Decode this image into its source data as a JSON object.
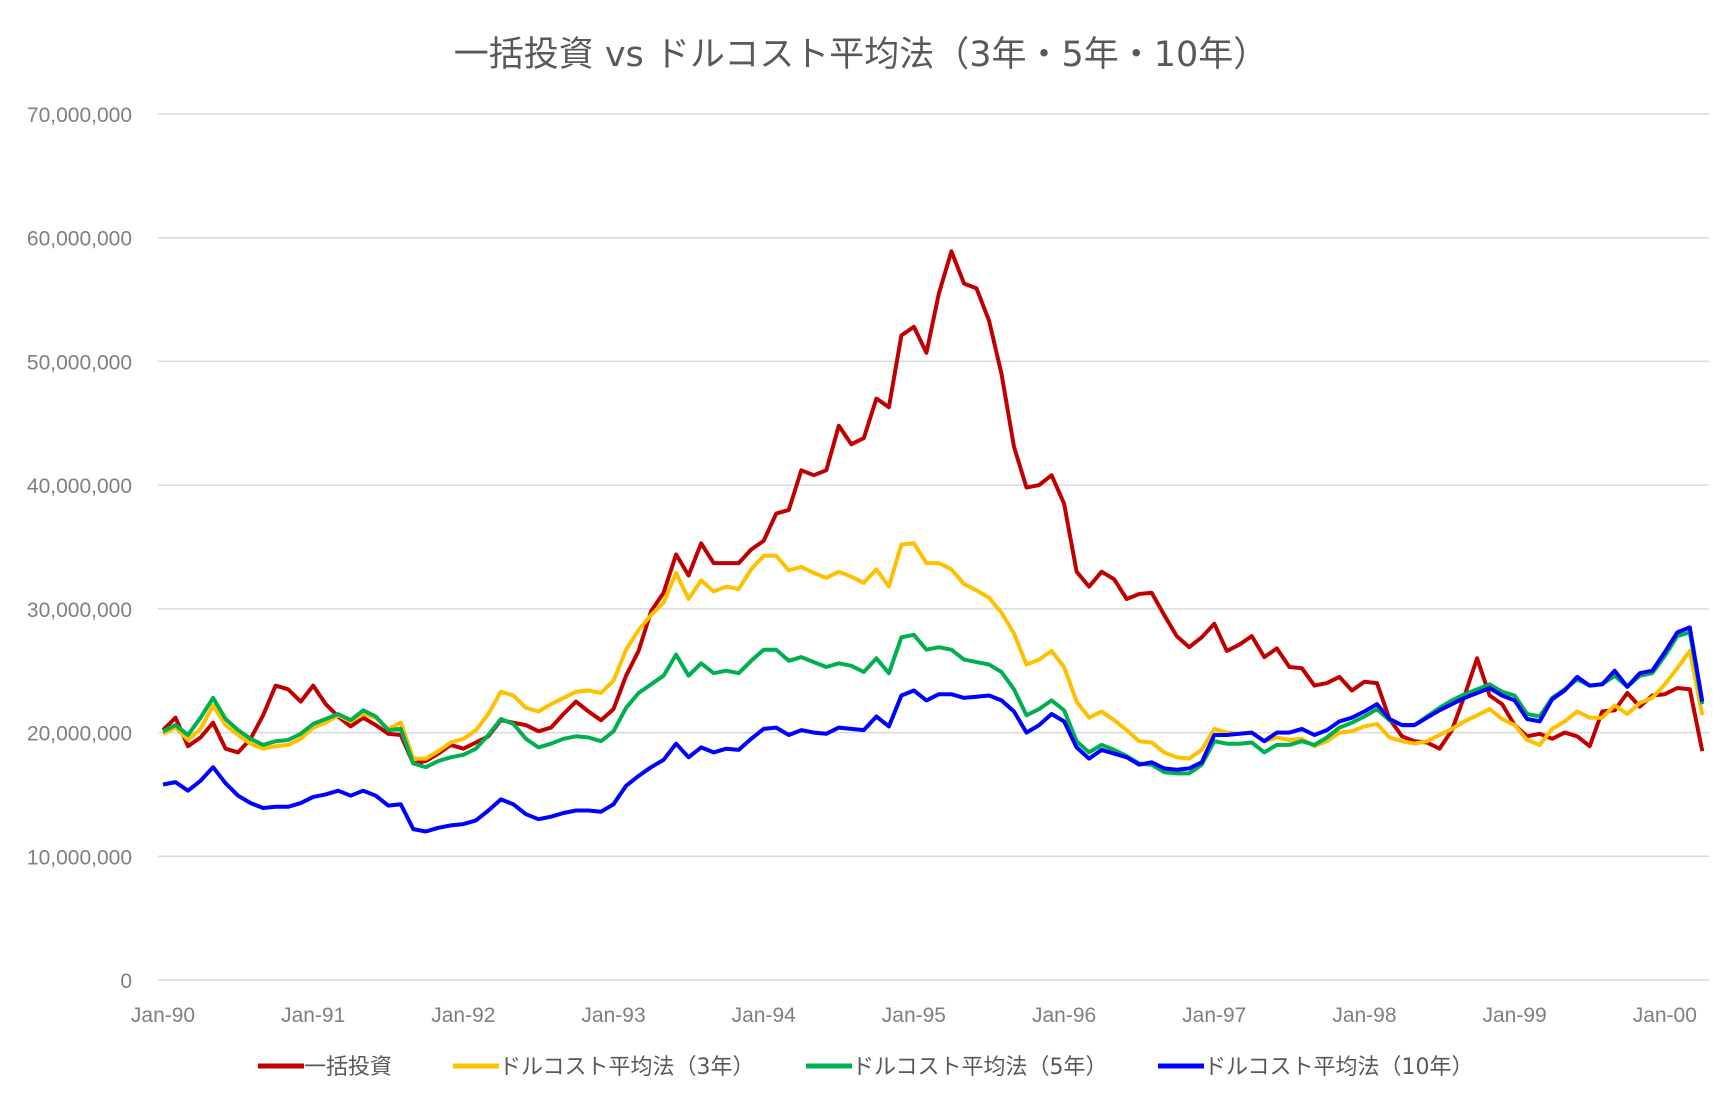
{
  "chart_data": {
    "type": "line",
    "title": "一括投資 vs ドルコスト平均法（3年・5年・10年）",
    "xlabel": "",
    "ylabel": "",
    "ylim": [
      0,
      70000000
    ],
    "y_ticks": [
      0,
      10000000,
      20000000,
      30000000,
      40000000,
      50000000,
      60000000,
      70000000
    ],
    "y_tick_labels": [
      "0",
      "10,000,000",
      "20,000,000",
      "30,000,000",
      "40,000,000",
      "50,000,000",
      "60,000,000",
      "70,000,000"
    ],
    "x_tick_labels": [
      "Jan-90",
      "Jan-91",
      "Jan-92",
      "Jan-93",
      "Jan-94",
      "Jan-95",
      "Jan-96",
      "Jan-97",
      "Jan-98",
      "Jan-99",
      "Jan-00"
    ],
    "x_range": [
      "1990-01",
      "2000-04"
    ],
    "grid": "horizontal",
    "legend": "bottom",
    "unit_scale_values": 1000000,
    "series": [
      {
        "name": "一括投資",
        "color": "#C00000",
        "values": [
          20.2,
          21.2,
          18.9,
          19.6,
          20.8,
          18.7,
          18.4,
          19.5,
          21.4,
          23.8,
          23.5,
          22.5,
          23.8,
          22.3,
          21.3,
          20.5,
          21.2,
          20.6,
          19.9,
          19.8,
          17.5,
          17.7,
          18.3,
          19,
          18.7,
          19.2,
          19.7,
          21,
          20.8,
          20.6,
          20.1,
          20.4,
          21.5,
          22.5,
          21.7,
          21,
          21.9,
          24.6,
          26.6,
          29.8,
          31.3,
          34.4,
          32.7,
          35.3,
          33.7,
          33.7,
          33.7,
          34.8,
          35.5,
          37.7,
          38,
          41.2,
          40.8,
          41.2,
          44.8,
          43.3,
          43.8,
          47,
          46.3,
          52.1,
          52.8,
          50.7,
          55.5,
          58.9,
          56.3,
          55.9,
          53.3,
          49,
          43.1,
          39.8,
          40,
          40.8,
          38.5,
          33,
          31.8,
          33,
          32.4,
          30.8,
          31.2,
          31.3,
          29.5,
          27.8,
          26.9,
          27.7,
          28.8,
          26.6,
          27.1,
          27.8,
          26.1,
          26.8,
          25.3,
          25.2,
          23.8,
          24,
          24.5,
          23.4,
          24.1,
          24,
          21.1,
          19.7,
          19.3,
          19.2,
          18.7,
          20.2,
          23,
          26,
          23,
          22.3,
          20.6,
          19.7,
          19.9,
          19.5,
          20,
          19.7,
          18.9,
          21.7,
          21.8,
          23.2,
          22.1,
          23,
          23.1,
          23.6,
          23.5,
          18.5
        ]
      },
      {
        "name": "ドルコスト平均法（3年）",
        "color": "#FFC000",
        "values": [
          19.9,
          20.4,
          19.4,
          20.3,
          22.2,
          20.6,
          19.8,
          19.1,
          18.7,
          18.9,
          19,
          19.5,
          20.4,
          20.8,
          21.4,
          20.9,
          21.5,
          21.2,
          20.3,
          20.8,
          17.9,
          17.9,
          18.5,
          19.2,
          19.5,
          20.2,
          21.5,
          23.3,
          23,
          22,
          21.7,
          22.3,
          22.8,
          23.3,
          23.4,
          23.2,
          24.2,
          26.7,
          28.3,
          29.5,
          30.5,
          32.9,
          30.8,
          32.3,
          31.4,
          31.8,
          31.6,
          33.2,
          34.3,
          34.3,
          33.1,
          33.4,
          32.9,
          32.5,
          33,
          32.6,
          32.1,
          33.2,
          31.8,
          35.2,
          35.3,
          33.7,
          33.7,
          33.2,
          32,
          31.5,
          30.9,
          29.7,
          28,
          25.5,
          25.9,
          26.6,
          25.3,
          22.5,
          21.2,
          21.7,
          21,
          20.2,
          19.3,
          19.2,
          18.4,
          18,
          17.9,
          18.6,
          20.3,
          20,
          19.9,
          20,
          19.3,
          19.6,
          19.4,
          19.5,
          18.9,
          19.3,
          20,
          20.1,
          20.5,
          20.7,
          19.6,
          19.3,
          19.1,
          19.3,
          19.8,
          20.3,
          20.9,
          21.4,
          21.9,
          21.1,
          20.6,
          19.4,
          19,
          20.3,
          20.9,
          21.7,
          21.2,
          21.2,
          22.2,
          21.5,
          22.4,
          22.8,
          23.9,
          25.2,
          26.6,
          21.4
        ]
      },
      {
        "name": "ドルコスト平均法（5年）",
        "color": "#00B050",
        "values": [
          20.1,
          20.6,
          19.8,
          21.2,
          22.8,
          21.1,
          20.2,
          19.5,
          19,
          19.3,
          19.4,
          19.9,
          20.7,
          21.1,
          21.5,
          21,
          21.8,
          21.3,
          20.2,
          20.3,
          17.5,
          17.2,
          17.7,
          18,
          18.2,
          18.7,
          19.8,
          21.1,
          20.7,
          19.5,
          18.8,
          19.1,
          19.5,
          19.7,
          19.6,
          19.3,
          20.1,
          22,
          23.2,
          23.9,
          24.6,
          26.3,
          24.6,
          25.6,
          24.8,
          25,
          24.8,
          25.8,
          26.7,
          26.7,
          25.8,
          26.1,
          25.7,
          25.3,
          25.6,
          25.4,
          24.9,
          26,
          24.8,
          27.7,
          27.9,
          26.7,
          26.9,
          26.7,
          25.9,
          25.7,
          25.5,
          24.9,
          23.5,
          21.4,
          21.9,
          22.6,
          21.8,
          19.3,
          18.4,
          19,
          18.6,
          18.1,
          17.5,
          17.4,
          16.8,
          16.7,
          16.7,
          17.4,
          19.3,
          19.1,
          19.1,
          19.2,
          18.4,
          19,
          19,
          19.3,
          19,
          19.6,
          20.4,
          20.8,
          21.3,
          21.9,
          21,
          20.6,
          20.6,
          21.3,
          22,
          22.6,
          23.1,
          23.5,
          23.9,
          23.3,
          23,
          21.5,
          21.3,
          22.8,
          23.5,
          24.3,
          23.8,
          23.9,
          24.6,
          23.7,
          24.6,
          24.8,
          26.2,
          27.8,
          28.1,
          22.3
        ]
      },
      {
        "name": "ドルコスト平均法（10年）",
        "color": "#0000FF",
        "values": [
          15.8,
          16,
          15.3,
          16.1,
          17.2,
          15.9,
          14.9,
          14.3,
          13.9,
          14,
          14,
          14.3,
          14.8,
          15,
          15.3,
          14.9,
          15.3,
          14.9,
          14.1,
          14.2,
          12.2,
          12,
          12.3,
          12.5,
          12.6,
          12.9,
          13.7,
          14.6,
          14.2,
          13.4,
          13,
          13.2,
          13.5,
          13.7,
          13.7,
          13.6,
          14.2,
          15.7,
          16.5,
          17.2,
          17.8,
          19.1,
          18,
          18.8,
          18.4,
          18.7,
          18.6,
          19.5,
          20.3,
          20.4,
          19.8,
          20.2,
          20,
          19.9,
          20.4,
          20.3,
          20.2,
          21.3,
          20.5,
          23,
          23.4,
          22.6,
          23.1,
          23.1,
          22.8,
          22.9,
          23,
          22.6,
          21.7,
          20,
          20.6,
          21.5,
          20.9,
          18.8,
          17.9,
          18.6,
          18.3,
          18,
          17.4,
          17.6,
          17.1,
          17,
          17.1,
          17.6,
          19.8,
          19.8,
          19.9,
          20,
          19.3,
          20,
          20,
          20.3,
          19.8,
          20.2,
          20.9,
          21.2,
          21.7,
          22.3,
          21.1,
          20.6,
          20.6,
          21.2,
          21.8,
          22.3,
          22.8,
          23.2,
          23.6,
          23,
          22.6,
          21.1,
          20.9,
          22.7,
          23.4,
          24.5,
          23.8,
          23.9,
          25,
          23.7,
          24.8,
          25,
          26.5,
          28.1,
          28.5,
          22.5
        ]
      }
    ]
  }
}
